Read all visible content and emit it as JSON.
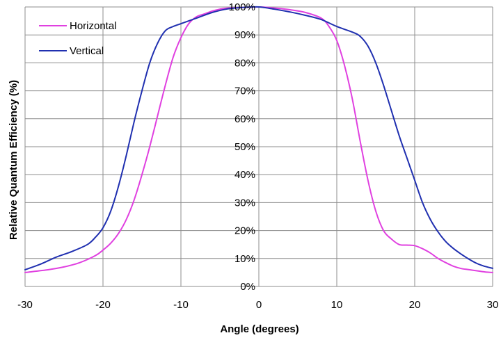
{
  "chart_data": {
    "type": "line",
    "title": "",
    "xlabel": "Angle (degrees)",
    "ylabel": "Relative Quantum Efficiency (%)",
    "xlim": [
      -30,
      30
    ],
    "ylim": [
      0,
      100
    ],
    "x_ticks": [
      -30,
      -20,
      -10,
      0,
      10,
      20,
      30
    ],
    "x_tick_labels": [
      "-30",
      "-20",
      "-10",
      "0",
      "10",
      "20",
      "30"
    ],
    "y_ticks": [
      0,
      10,
      20,
      30,
      40,
      50,
      60,
      70,
      80,
      90,
      100
    ],
    "y_tick_labels": [
      "0%",
      "10%",
      "20%",
      "30%",
      "40%",
      "50%",
      "60%",
      "70%",
      "80%",
      "90%",
      "100%"
    ],
    "grid": true,
    "legend_position": "top-left",
    "series": [
      {
        "name": "Horizontal",
        "color": "#e040e0",
        "points": [
          [
            -30,
            5
          ],
          [
            -27,
            6
          ],
          [
            -25,
            7
          ],
          [
            -23,
            8.5
          ],
          [
            -21,
            11
          ],
          [
            -20,
            13
          ],
          [
            -19,
            15.5
          ],
          [
            -18,
            19
          ],
          [
            -17,
            24
          ],
          [
            -16,
            31
          ],
          [
            -15,
            40
          ],
          [
            -14,
            50
          ],
          [
            -13,
            61
          ],
          [
            -12,
            72
          ],
          [
            -11,
            82
          ],
          [
            -10,
            89
          ],
          [
            -9,
            94
          ],
          [
            -8,
            96.5
          ],
          [
            -7,
            97.5
          ],
          [
            -6,
            98.5
          ],
          [
            -5,
            99.2
          ],
          [
            -4,
            99.6
          ],
          [
            -2,
            99.8
          ],
          [
            0,
            100
          ],
          [
            2,
            99.6
          ],
          [
            4,
            99
          ],
          [
            6,
            98
          ],
          [
            8,
            96
          ],
          [
            9,
            93
          ],
          [
            10,
            88
          ],
          [
            11,
            79
          ],
          [
            12,
            67
          ],
          [
            13,
            52
          ],
          [
            14,
            38
          ],
          [
            15,
            27
          ],
          [
            16,
            20
          ],
          [
            17,
            17
          ],
          [
            18,
            15
          ],
          [
            19,
            14.8
          ],
          [
            20,
            14.6
          ],
          [
            21,
            13.5
          ],
          [
            22,
            12
          ],
          [
            23,
            10
          ],
          [
            24,
            8.5
          ],
          [
            25,
            7.2
          ],
          [
            26,
            6.4
          ],
          [
            27,
            6
          ],
          [
            28,
            5.6
          ],
          [
            29,
            5.2
          ],
          [
            30,
            5
          ]
        ]
      },
      {
        "name": "Vertical",
        "color": "#2030b0",
        "points": [
          [
            -30,
            6
          ],
          [
            -28,
            8
          ],
          [
            -26,
            10.5
          ],
          [
            -24,
            12.5
          ],
          [
            -22,
            15
          ],
          [
            -21,
            17.5
          ],
          [
            -20,
            21
          ],
          [
            -19,
            27
          ],
          [
            -18,
            36
          ],
          [
            -17,
            47
          ],
          [
            -16,
            59
          ],
          [
            -15,
            70
          ],
          [
            -14,
            80
          ],
          [
            -13,
            87
          ],
          [
            -12,
            91.5
          ],
          [
            -11,
            93
          ],
          [
            -10,
            94
          ],
          [
            -8,
            96
          ],
          [
            -6,
            98
          ],
          [
            -4,
            99.3
          ],
          [
            -2,
            99.8
          ],
          [
            0,
            100
          ],
          [
            2,
            99.2
          ],
          [
            4,
            98.2
          ],
          [
            6,
            97
          ],
          [
            8,
            95.5
          ],
          [
            10,
            93
          ],
          [
            12,
            91
          ],
          [
            13,
            89.5
          ],
          [
            14,
            86
          ],
          [
            15,
            80
          ],
          [
            16,
            72
          ],
          [
            17,
            63
          ],
          [
            18,
            54
          ],
          [
            19,
            46
          ],
          [
            20,
            38
          ],
          [
            21,
            30
          ],
          [
            22,
            24
          ],
          [
            23,
            19.5
          ],
          [
            24,
            16
          ],
          [
            25,
            13.5
          ],
          [
            26,
            11.5
          ],
          [
            27,
            9.7
          ],
          [
            28,
            8.2
          ],
          [
            29,
            7.2
          ],
          [
            30,
            6.5
          ]
        ]
      }
    ]
  }
}
